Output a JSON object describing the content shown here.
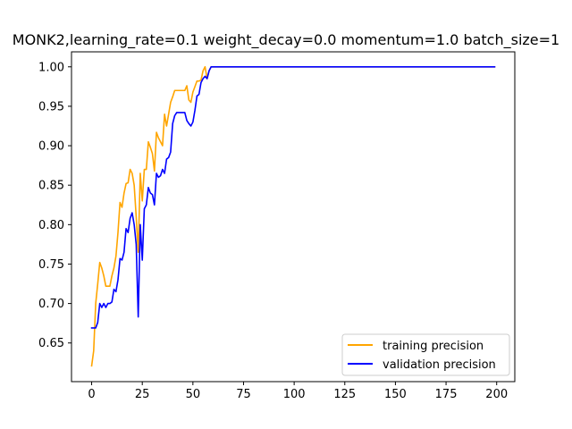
{
  "chart_data": {
    "type": "line",
    "title": "MONK2,learning_rate=0.1  weight_decay=0.0  momentum=1.0  batch_size=1",
    "xlabel": "",
    "ylabel": "",
    "xlim": [
      -9.95,
      208.95
    ],
    "ylim": [
      0.601,
      1.019
    ],
    "xticks": [
      0,
      25,
      50,
      75,
      100,
      125,
      150,
      175,
      200
    ],
    "yticks": [
      0.65,
      0.7,
      0.75,
      0.8,
      0.85,
      0.9,
      0.95,
      1.0
    ],
    "grid": false,
    "legend_position": "lower right",
    "colors": {
      "training": "#ffa500",
      "validation": "#0000ff"
    },
    "series": [
      {
        "name": "training precision",
        "color": "#ffa500",
        "x": [
          0,
          1,
          2,
          3,
          4,
          5,
          6,
          7,
          8,
          9,
          10,
          11,
          12,
          13,
          14,
          15,
          16,
          17,
          18,
          19,
          20,
          21,
          22,
          23,
          24,
          25,
          26,
          27,
          28,
          29,
          30,
          31,
          32,
          33,
          34,
          35,
          36,
          37,
          38,
          39,
          40,
          41,
          42,
          43,
          44,
          45,
          46,
          47,
          48,
          49,
          50,
          51,
          52,
          53,
          54,
          55,
          56,
          57,
          58,
          59,
          60,
          199
        ],
        "values": [
          0.621,
          0.64,
          0.7,
          0.725,
          0.752,
          0.745,
          0.735,
          0.722,
          0.722,
          0.722,
          0.735,
          0.745,
          0.76,
          0.79,
          0.828,
          0.822,
          0.84,
          0.852,
          0.853,
          0.87,
          0.865,
          0.85,
          0.81,
          0.765,
          0.865,
          0.83,
          0.87,
          0.87,
          0.905,
          0.898,
          0.89,
          0.868,
          0.917,
          0.91,
          0.905,
          0.9,
          0.94,
          0.925,
          0.94,
          0.955,
          0.962,
          0.97,
          0.97,
          0.97,
          0.97,
          0.97,
          0.97,
          0.976,
          0.958,
          0.955,
          0.968,
          0.975,
          0.982,
          0.982,
          0.983,
          0.995,
          1.0,
          0.985,
          0.995,
          1.0,
          1.0,
          1.0
        ]
      },
      {
        "name": "validation precision",
        "color": "#0000ff",
        "x": [
          0,
          1,
          2,
          3,
          4,
          5,
          6,
          7,
          8,
          9,
          10,
          11,
          12,
          13,
          14,
          15,
          16,
          17,
          18,
          19,
          20,
          21,
          22,
          23,
          24,
          25,
          26,
          27,
          28,
          29,
          30,
          31,
          32,
          33,
          34,
          35,
          36,
          37,
          38,
          39,
          40,
          41,
          42,
          43,
          44,
          45,
          46,
          47,
          48,
          49,
          50,
          51,
          52,
          53,
          54,
          55,
          56,
          57,
          58,
          59,
          60,
          199
        ],
        "values": [
          0.669,
          0.669,
          0.669,
          0.676,
          0.7,
          0.695,
          0.7,
          0.695,
          0.7,
          0.7,
          0.702,
          0.718,
          0.715,
          0.73,
          0.757,
          0.755,
          0.765,
          0.795,
          0.79,
          0.808,
          0.815,
          0.8,
          0.775,
          0.683,
          0.8,
          0.755,
          0.82,
          0.825,
          0.847,
          0.84,
          0.838,
          0.825,
          0.865,
          0.86,
          0.862,
          0.87,
          0.865,
          0.883,
          0.885,
          0.892,
          0.928,
          0.938,
          0.942,
          0.942,
          0.942,
          0.942,
          0.942,
          0.932,
          0.928,
          0.925,
          0.93,
          0.945,
          0.963,
          0.965,
          0.98,
          0.985,
          0.988,
          0.985,
          0.995,
          1.0,
          1.0,
          1.0
        ]
      }
    ]
  }
}
